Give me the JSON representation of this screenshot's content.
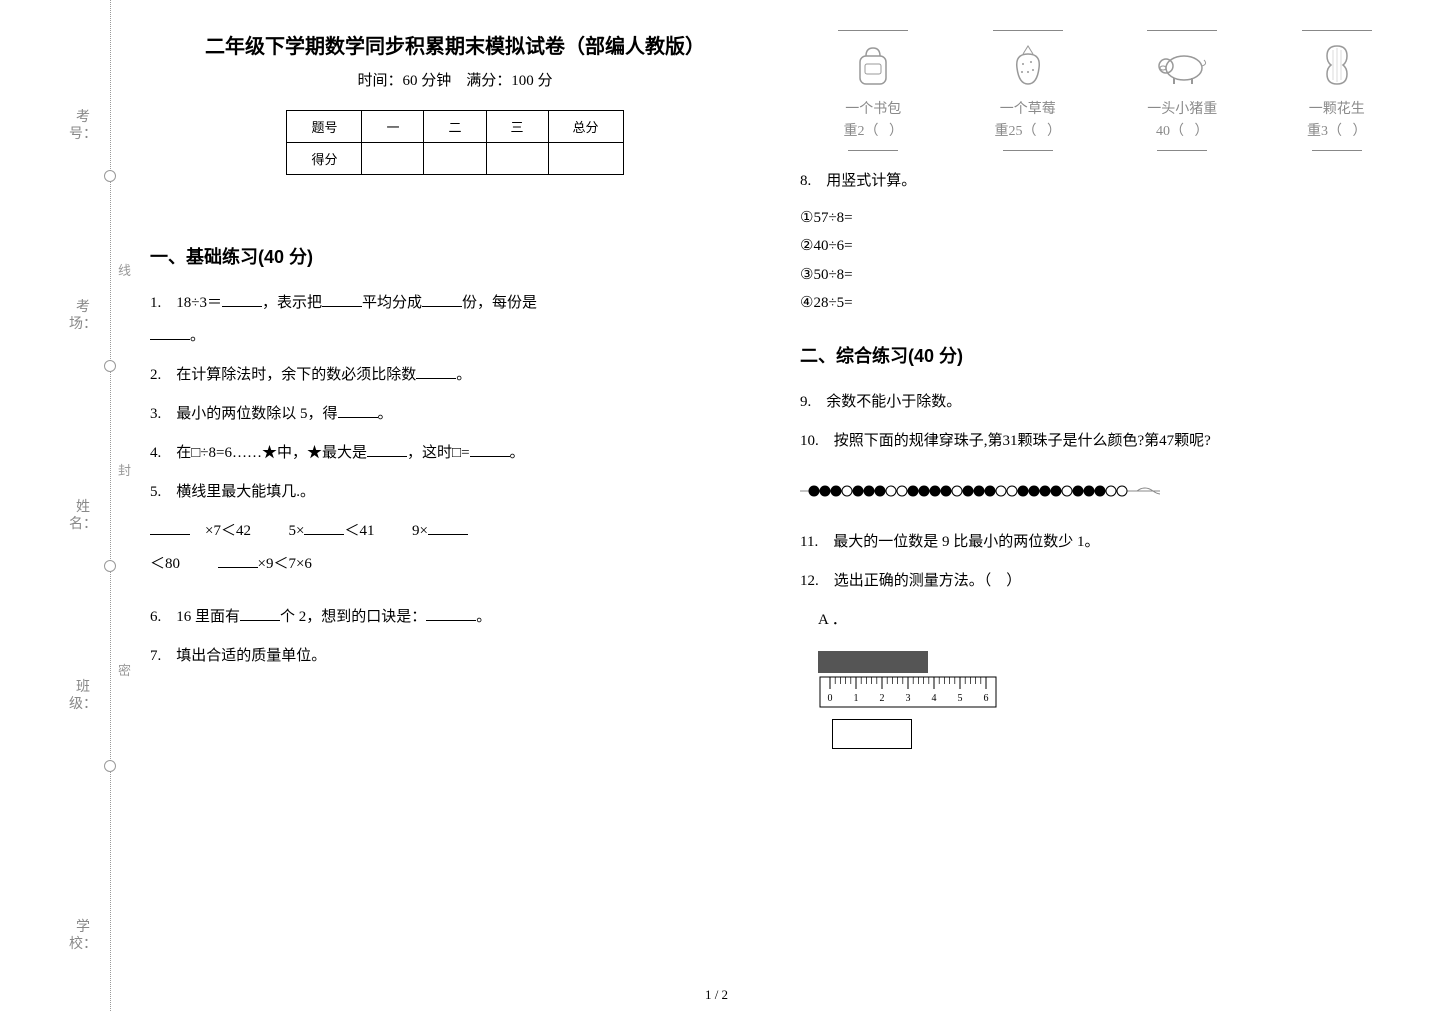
{
  "doc": {
    "title": "二年级下学期数学同步积累期末模拟试卷（部编人教版）",
    "subtitle": "时间：60 分钟　满分：100 分",
    "page_indicator": "1 / 2"
  },
  "binding": {
    "labels": {
      "school": "学校：",
      "class": "班级：",
      "name": "姓名：",
      "room": "考场：",
      "seat": "考号："
    },
    "seal_chars": [
      "密",
      "封",
      "线"
    ]
  },
  "score_table": {
    "header_label": "题号",
    "cols": [
      "一",
      "二",
      "三",
      "总分"
    ],
    "row_label": "得分"
  },
  "sections": {
    "s1": "一、基础练习(40 分)",
    "s2": "二、综合练习(40 分)"
  },
  "q1": {
    "pre": "1.　18÷3＝",
    "mid1": "，表示把",
    "mid2": "平均分成",
    "mid3": "份，每份是",
    "end": "。"
  },
  "q2": {
    "pre": "2.　在计算除法时，余下的数必须比除数",
    "end": "。"
  },
  "q3": {
    "pre": "3.　最小的两位数除以 5，得",
    "end": "。"
  },
  "q4": {
    "pre": "4.　在□÷8=6……★中，★最大是",
    "mid": "，这时□=",
    "end": "。"
  },
  "q5": {
    "title": "5.　横线里最大能填几.。",
    "a_pre": "　×7＜42",
    "b_pre": "5×",
    "b_post": "＜41",
    "c_pre": "9×",
    "c_post": "＜80",
    "d_post": "×9＜7×6"
  },
  "q6": {
    "pre": "6.　16 里面有",
    "mid": "个 2，想到的口诀是：",
    "end": "。"
  },
  "q7": {
    "title": "7.　填出合适的质量单位。"
  },
  "q7_items": [
    {
      "icon": "backpack",
      "line1": "一个书包",
      "line2_pre": "重2（",
      "line2_post": "）"
    },
    {
      "icon": "strawberry",
      "line1": "一个草莓",
      "line2_pre": "重25（",
      "line2_post": "）"
    },
    {
      "icon": "pig",
      "line1": "一头小猪重",
      "line2_pre": "40（",
      "line2_post": "）"
    },
    {
      "icon": "peanut",
      "line1": "一颗花生",
      "line2_pre": "重3（",
      "line2_post": "）"
    }
  ],
  "q8": {
    "title": "8.　用竖式计算。",
    "items": [
      "①57÷8=",
      "②40÷6=",
      "③50÷8=",
      "④28÷5="
    ]
  },
  "q9": {
    "text": "9.　余数不能小于除数。"
  },
  "q10": {
    "text": "10.　按照下面的规律穿珠子,第31颗珠子是什么颜色?第47颗呢?"
  },
  "q11": {
    "text": "11.　最大的一位数是 9 比最小的两位数少 1。"
  },
  "q12": {
    "text": "12.　选出正确的测量方法。（　）",
    "option_a": "A ．",
    "ruler_ticks": [
      "0",
      "1",
      "2",
      "3",
      "4",
      "5",
      "6"
    ]
  },
  "beads": {
    "pattern": [
      "b",
      "b",
      "b",
      "w",
      "b",
      "b",
      "b",
      "w",
      "w",
      "b",
      "b",
      "b",
      "b",
      "w",
      "b",
      "b",
      "b",
      "w",
      "w",
      "b",
      "b",
      "b",
      "b",
      "w",
      "b",
      "b",
      "b",
      "w",
      "w"
    ],
    "colors": {
      "b": "#000000",
      "w": "#ffffff"
    },
    "stroke": "#000000"
  }
}
